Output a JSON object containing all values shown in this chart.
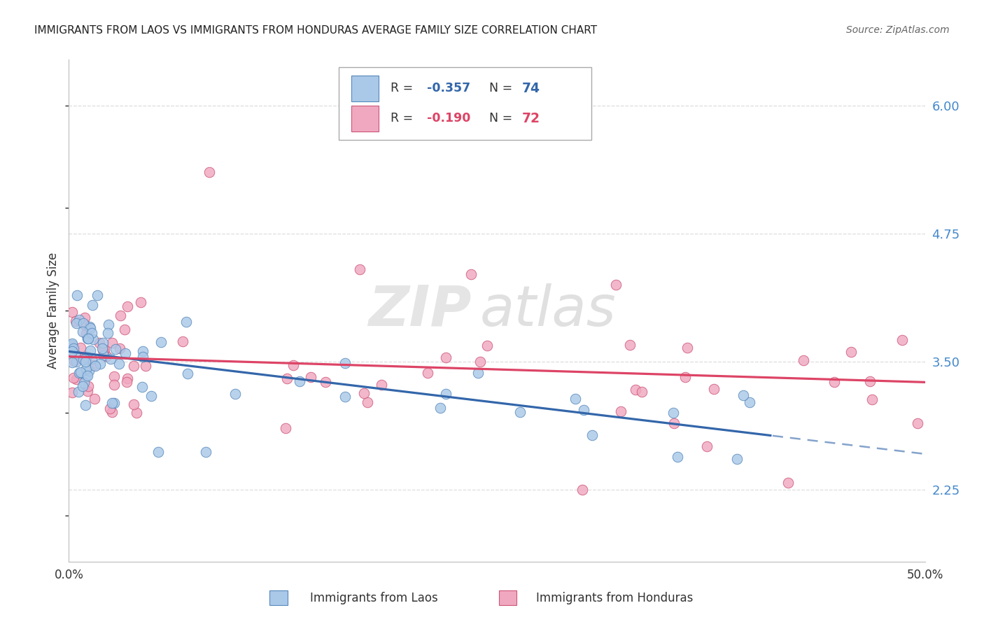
{
  "title": "IMMIGRANTS FROM LAOS VS IMMIGRANTS FROM HONDURAS AVERAGE FAMILY SIZE CORRELATION CHART",
  "source": "Source: ZipAtlas.com",
  "ylabel": "Average Family Size",
  "yticks": [
    2.25,
    3.5,
    4.75,
    6.0
  ],
  "xmin": 0.0,
  "xmax": 50.0,
  "ymin": 1.55,
  "ymax": 6.45,
  "laos_color": "#aac8e8",
  "laos_edge": "#5588bb",
  "honduras_color": "#f0a8c0",
  "honduras_edge": "#cc5577",
  "laos_R": -0.357,
  "laos_N": 74,
  "honduras_R": -0.19,
  "honduras_N": 72,
  "laos_line_color": "#3366aa",
  "honduras_line_color": "#dd4466",
  "laos_slope": -0.02,
  "laos_intercept": 3.6,
  "honduras_slope": -0.005,
  "honduras_intercept": 3.55,
  "laos_max_x": 41.0,
  "grid_color": "#dddddd",
  "tick_color": "#333333",
  "axis_label_color": "#4488cc",
  "title_color": "#222222",
  "source_color": "#666666"
}
